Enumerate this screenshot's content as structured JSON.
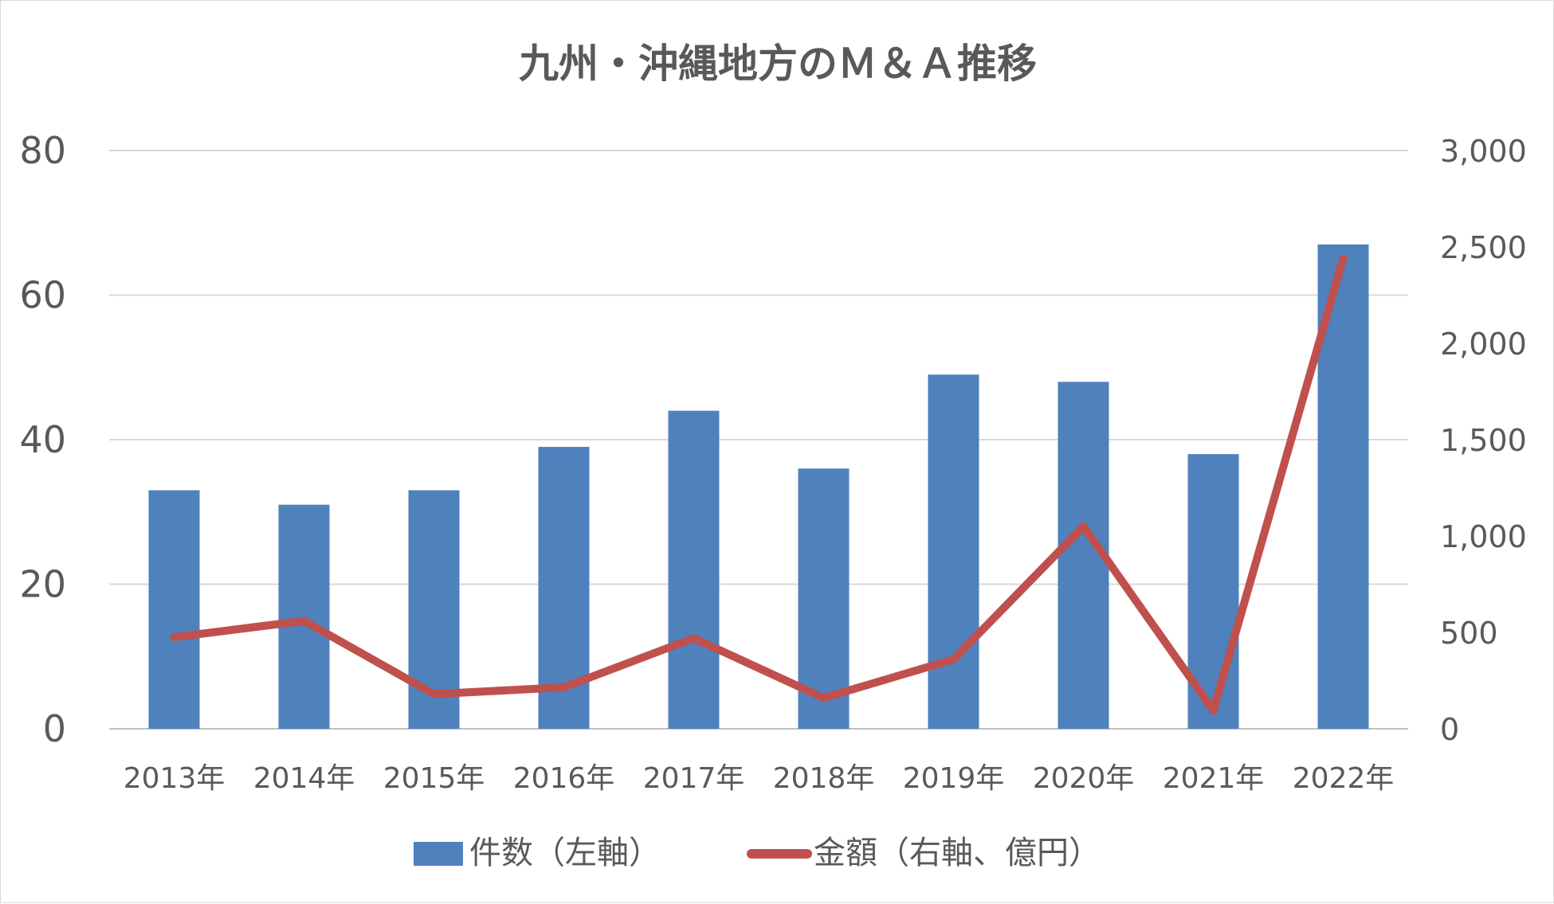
{
  "chart_data": {
    "type": "bar",
    "title": "九州・沖縄地方のＭ＆Ａ推移",
    "categories": [
      "2013年",
      "2014年",
      "2015年",
      "2016年",
      "2017年",
      "2018年",
      "2019年",
      "2020年",
      "2021年",
      "2022年"
    ],
    "series": [
      {
        "name": "件数（左軸）",
        "type": "bar",
        "axis": "left",
        "color": "#4f81bd",
        "values": [
          33,
          31,
          33,
          39,
          44,
          36,
          49,
          48,
          38,
          67
        ]
      },
      {
        "name": "金額（右軸、億円）",
        "type": "line",
        "axis": "right",
        "color": "#c0504d",
        "values": [
          475,
          560,
          180,
          215,
          470,
          160,
          360,
          1050,
          95,
          2440
        ]
      }
    ],
    "ylim": [
      0,
      80
    ],
    "y_ticks": [
      "0",
      "20",
      "40",
      "60",
      "80"
    ],
    "y2lim": [
      0,
      3000
    ],
    "y2_ticks": [
      "0",
      "500",
      "1,000",
      "1,500",
      "2,000",
      "2,500",
      "3,000"
    ],
    "grid": true,
    "legend_position": "bottom"
  }
}
